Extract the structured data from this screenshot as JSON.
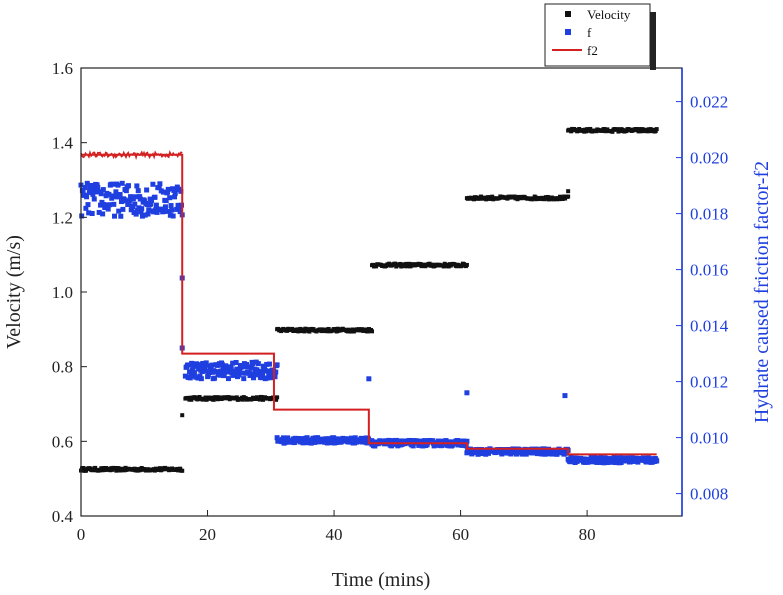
{
  "chart_data": {
    "type": "scatter",
    "xlabel": "Time (mins)",
    "ylabel": "Velocity (m/s)",
    "y2label": "Hydrate caused friction factor-f2",
    "xlim": [
      0,
      95
    ],
    "ylim": [
      0.4,
      1.6
    ],
    "y2lim": [
      0.0072,
      0.0232
    ],
    "x_ticks": [
      "0",
      "20",
      "40",
      "60",
      "80"
    ],
    "y_ticks": [
      "0.4",
      "0.6",
      "0.8",
      "1.0",
      "1.2",
      "1.4",
      "1.6"
    ],
    "y2_ticks": [
      "0.008",
      "0.010",
      "0.012",
      "0.014",
      "0.016",
      "0.018",
      "0.020",
      "0.022"
    ],
    "grid": false,
    "legend_position": "top-right",
    "series": [
      {
        "name": "Velocity",
        "axis": "left",
        "marker": "square",
        "color": "#111111",
        "segments": [
          {
            "x_start": 0,
            "x_end": 16,
            "y": 0.525
          },
          {
            "x_start": 16.5,
            "x_end": 31,
            "y": 0.715
          },
          {
            "x_start": 31,
            "x_end": 46,
            "y": 0.898
          },
          {
            "x_start": 46,
            "x_end": 61,
            "y": 1.072
          },
          {
            "x_start": 61,
            "x_end": 77,
            "y": 1.252
          },
          {
            "x_start": 77,
            "x_end": 91,
            "y": 1.433
          }
        ],
        "transition_points": [
          {
            "x": 16,
            "y": 0.67
          },
          {
            "x": 77,
            "y": 1.27
          }
        ]
      },
      {
        "name": "f",
        "axis": "right",
        "marker": "square",
        "color": "#1f3fe0",
        "segments": [
          {
            "x_start": 0,
            "x_end": 16,
            "y": 0.0185,
            "spread": 0.0006
          },
          {
            "x_start": 16.5,
            "x_end": 31,
            "y": 0.0124,
            "spread": 0.0003
          },
          {
            "x_start": 31,
            "x_end": 46,
            "y": 0.0099,
            "spread": 0.0001
          },
          {
            "x_start": 46,
            "x_end": 61,
            "y": 0.0098,
            "spread": 0.0001
          },
          {
            "x_start": 61,
            "x_end": 77,
            "y": 0.0095,
            "spread": 0.0001
          },
          {
            "x_start": 77,
            "x_end": 91,
            "y": 0.0092,
            "spread": 0.0001
          }
        ],
        "outliers": [
          {
            "x": 16,
            "y": 0.0157
          },
          {
            "x": 16,
            "y": 0.0132
          },
          {
            "x": 45.5,
            "y": 0.0121
          },
          {
            "x": 61,
            "y": 0.0116
          },
          {
            "x": 76.5,
            "y": 0.0115
          }
        ]
      },
      {
        "name": "f2",
        "axis": "right",
        "type": "line",
        "color": "#d42020",
        "steps": [
          {
            "x_start": 0,
            "x_end": 16,
            "y": 0.0201
          },
          {
            "x_start": 16,
            "x_end": 30.5,
            "y": 0.013
          },
          {
            "x_start": 30.5,
            "x_end": 45.5,
            "y": 0.011
          },
          {
            "x_start": 45.5,
            "x_end": 61,
            "y": 0.0098
          },
          {
            "x_start": 61,
            "x_end": 77,
            "y": 0.0096
          },
          {
            "x_start": 77,
            "x_end": 91,
            "y": 0.0094
          }
        ]
      }
    ]
  }
}
